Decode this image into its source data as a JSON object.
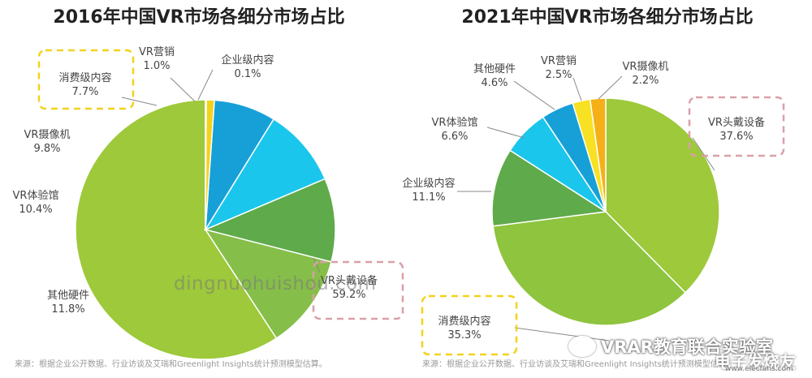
{
  "chart_data": [
    {
      "type": "pie",
      "title": "2016年中国VR市场各细分市场占比",
      "slices": [
        {
          "label": "VR头戴设备",
          "value": 59.2,
          "value_text": "59.2%",
          "color": "#9DC93A"
        },
        {
          "label": "其他硬件",
          "value": 11.8,
          "value_text": "11.8%",
          "color": "#86BE4A"
        },
        {
          "label": "VR体验馆",
          "value": 10.4,
          "value_text": "10.4%",
          "color": "#5FAA4A"
        },
        {
          "label": "VR摄像机",
          "value": 9.8,
          "value_text": "9.8%",
          "color": "#1BC6EC"
        },
        {
          "label": "消费级内容",
          "value": 7.7,
          "value_text": "7.7%",
          "color": "#17A0D8"
        },
        {
          "label": "VR营销",
          "value": 1.0,
          "value_text": "1.0%",
          "color": "#F3D21C"
        },
        {
          "label": "企业级内容",
          "value": 0.1,
          "value_text": "0.1%",
          "color": "#F2A518"
        }
      ],
      "highlighted": [
        "消费级内容",
        "VR头戴设备"
      ],
      "source": "来源：根据企业公开数据、行业访谈及艾瑞和Greenlight Insights统计预测模型估算。"
    },
    {
      "type": "pie",
      "title": "2021年中国VR市场各细分市场占比",
      "slices": [
        {
          "label": "VR头戴设备",
          "value": 37.6,
          "value_text": "37.6%",
          "color": "#9DC93A"
        },
        {
          "label": "消费级内容",
          "value": 35.3,
          "value_text": "35.3%",
          "color": "#8EC43E"
        },
        {
          "label": "企业级内容",
          "value": 11.1,
          "value_text": "11.1%",
          "color": "#5FAA4A"
        },
        {
          "label": "VR体验馆",
          "value": 6.6,
          "value_text": "6.6%",
          "color": "#1BC6EC"
        },
        {
          "label": "其他硬件",
          "value": 4.6,
          "value_text": "4.6%",
          "color": "#17A0D8"
        },
        {
          "label": "VR营销",
          "value": 2.5,
          "value_text": "2.5%",
          "color": "#F8E022"
        },
        {
          "label": "VR摄像机",
          "value": 2.2,
          "value_text": "2.2%",
          "color": "#F5B017"
        }
      ],
      "highlighted": [
        "VR头戴设备",
        "消费级内容"
      ],
      "source": "来源：根据企业公开数据、行业访谈及艾瑞和Greenlight Insights统计预测模型估算。"
    }
  ],
  "watermark": "dingnuohuishou.com",
  "brand": "VRAR教育联合实验室",
  "site_logo": "电子发烧友",
  "site_url": "www.elecfans.com"
}
